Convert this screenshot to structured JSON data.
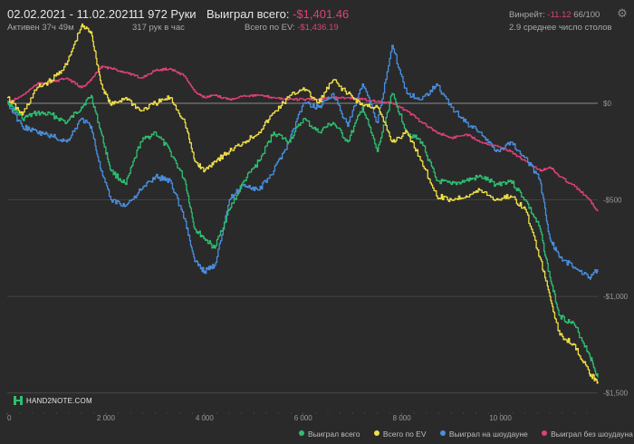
{
  "header": {
    "date_range": "02.02.2021 - 11.02.2021",
    "active_time": "Активен 37ч 49м",
    "hands": "11 972 Руки",
    "hands_per_hour": "317 рук в час",
    "won_total_label": "Выиграл всего:",
    "won_total_value": "-$1,401.46",
    "ev_total_label": "Всего по EV:",
    "ev_total_value": "-$1,436.19",
    "winrate_label": "Винрейт:",
    "winrate_value": "-11.12",
    "winrate_unit": "66/100",
    "tables_avg": "2.9 среднее число столов"
  },
  "logo": {
    "text": "HAND2NOTE.COM"
  },
  "icons": {
    "settings": "gear-icon",
    "logo": "hand2note-logo-icon"
  },
  "colors": {
    "won": "#2fbf71",
    "ev": "#f0e04a",
    "showdown": "#4a8fe0",
    "nonshowdown": "#e0407a",
    "background": "#2a2a2a",
    "grid": "#4a4a4a",
    "zero_line": "#8a8a8a"
  },
  "chart_data": {
    "type": "line",
    "x_ticks": [
      0,
      2000,
      4000,
      6000,
      8000,
      10000
    ],
    "x_tick_labels": [
      "0",
      "2 000",
      "4 000",
      "6 000",
      "8 000",
      "10 000"
    ],
    "y_ticks": [
      0,
      -500,
      -1000,
      -1500
    ],
    "y_tick_labels": [
      "$0",
      "-$500",
      "-$1,000",
      "-$1,500"
    ],
    "xlim": [
      0,
      11972
    ],
    "ylim": [
      -1600,
      300
    ],
    "grid": true,
    "legend_position": "bottom-right",
    "series": [
      {
        "name": "Выиграл всего",
        "color": "#2fbf71",
        "x": [
          0,
          300,
          600,
          900,
          1200,
          1500,
          1700,
          1900,
          2100,
          2400,
          2700,
          3000,
          3300,
          3600,
          3800,
          4000,
          4200,
          4500,
          4800,
          5100,
          5400,
          5700,
          6000,
          6300,
          6600,
          6900,
          7200,
          7500,
          7800,
          8100,
          8400,
          8700,
          9000,
          9300,
          9600,
          9900,
          10200,
          10500,
          10800,
          11000,
          11200,
          11500,
          11800,
          11972
        ],
        "y": [
          10,
          -80,
          -50,
          -60,
          -100,
          -20,
          40,
          -150,
          -350,
          -420,
          -200,
          -150,
          -250,
          -400,
          -650,
          -700,
          -750,
          -550,
          -400,
          -300,
          -150,
          -200,
          -80,
          -150,
          -100,
          -200,
          -20,
          -250,
          50,
          -150,
          -200,
          -400,
          -420,
          -400,
          -380,
          -420,
          -400,
          -500,
          -650,
          -900,
          -1100,
          -1150,
          -1300,
          -1420
        ]
      },
      {
        "name": "Всего по EV",
        "color": "#f0e04a",
        "x": [
          0,
          300,
          600,
          900,
          1200,
          1500,
          1700,
          1900,
          2100,
          2400,
          2700,
          3000,
          3300,
          3600,
          3800,
          4000,
          4200,
          4500,
          4800,
          5100,
          5400,
          5700,
          6000,
          6300,
          6600,
          6900,
          7200,
          7500,
          7800,
          8100,
          8400,
          8700,
          9000,
          9300,
          9600,
          9900,
          10200,
          10500,
          10800,
          11000,
          11200,
          11500,
          11800,
          11972
        ],
        "y": [
          30,
          -60,
          80,
          120,
          200,
          400,
          370,
          100,
          -10,
          30,
          -40,
          0,
          30,
          -100,
          -300,
          -350,
          -300,
          -250,
          -200,
          -150,
          -50,
          30,
          80,
          0,
          120,
          50,
          -10,
          -20,
          -200,
          -150,
          -300,
          -480,
          -500,
          -480,
          -450,
          -500,
          -480,
          -550,
          -800,
          -1000,
          -1200,
          -1250,
          -1400,
          -1440
        ]
      },
      {
        "name": "Выиграл на шоудауне",
        "color": "#4a8fe0",
        "x": [
          0,
          300,
          600,
          900,
          1200,
          1500,
          1700,
          1900,
          2100,
          2400,
          2700,
          3000,
          3300,
          3600,
          3800,
          4000,
          4200,
          4500,
          4800,
          5100,
          5400,
          5700,
          6000,
          6300,
          6600,
          6900,
          7200,
          7500,
          7800,
          8100,
          8400,
          8700,
          9000,
          9300,
          9600,
          9900,
          10200,
          10500,
          10800,
          11000,
          11200,
          11500,
          11800,
          11972
        ],
        "y": [
          0,
          -120,
          -150,
          -170,
          -200,
          -80,
          -120,
          -350,
          -500,
          -530,
          -450,
          -380,
          -400,
          -600,
          -820,
          -870,
          -840,
          -500,
          -420,
          -450,
          -350,
          -200,
          0,
          -20,
          50,
          -120,
          100,
          -100,
          300,
          50,
          20,
          100,
          -20,
          -100,
          -150,
          -250,
          -200,
          -280,
          -400,
          -700,
          -800,
          -850,
          -900,
          -860
        ]
      },
      {
        "name": "Выиграл без шоудауна",
        "color": "#e0407a",
        "x": [
          0,
          300,
          600,
          900,
          1200,
          1500,
          1700,
          1900,
          2100,
          2400,
          2700,
          3000,
          3300,
          3600,
          3800,
          4000,
          4200,
          4500,
          4800,
          5100,
          5400,
          5700,
          6000,
          6300,
          6600,
          6900,
          7200,
          7500,
          7800,
          8100,
          8400,
          8700,
          9000,
          9300,
          9600,
          9900,
          10200,
          10500,
          10800,
          11000,
          11200,
          11500,
          11800,
          11972
        ],
        "y": [
          0,
          40,
          100,
          110,
          130,
          80,
          120,
          190,
          180,
          160,
          130,
          170,
          180,
          140,
          60,
          30,
          40,
          20,
          40,
          40,
          30,
          20,
          20,
          20,
          30,
          30,
          20,
          10,
          0,
          -40,
          -100,
          -150,
          -180,
          -160,
          -200,
          -220,
          -250,
          -300,
          -350,
          -330,
          -380,
          -430,
          -500,
          -560
        ]
      }
    ]
  }
}
